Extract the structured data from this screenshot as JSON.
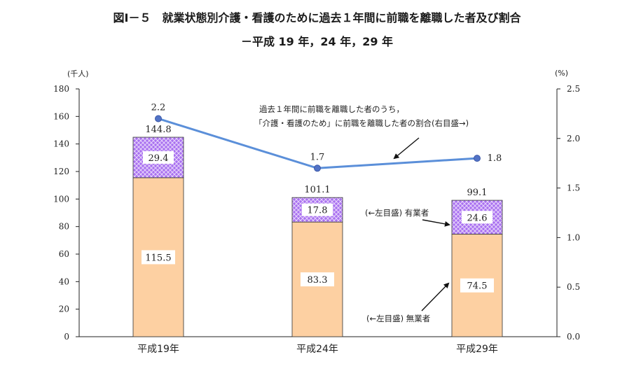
{
  "title": "図Ⅰ－５　就業状態別介護・看護のために過去１年間に前職を離職した者及び割合",
  "subtitle": "－平成 19 年，24 年，29 年",
  "chart_data": {
    "type": "bar",
    "stacked": true,
    "categories": [
      "平成19年",
      "平成24年",
      "平成29年"
    ],
    "series": [
      {
        "name": "(←左目盛) 無業者",
        "values": [
          115.5,
          83.3,
          74.5
        ],
        "value_labels": [
          "115.5",
          "83.3",
          "74.5"
        ],
        "color": "#fdd0a2"
      },
      {
        "name": "(←左目盛) 有業者",
        "values": [
          29.4,
          17.8,
          24.6
        ],
        "value_labels": [
          "29.4",
          "17.8",
          "24.6"
        ],
        "color": "#a970f0"
      }
    ],
    "totals": [
      144.8,
      101.1,
      99.1
    ],
    "total_labels": [
      "144.8",
      "101.1",
      "99.1"
    ],
    "line_series": {
      "name": "過去１年間に前職を離職した者のうち，「介護・看護のため」に前職を離職した者の割合(右目盛→)",
      "values": [
        2.2,
        1.7,
        1.8
      ],
      "value_labels": [
        "2.2",
        "1.7",
        "1.8"
      ],
      "color": "#5b8fd9"
    },
    "y_left": {
      "unit": "(千人)",
      "min": 0,
      "max": 180,
      "ticks": [
        0,
        20,
        40,
        60,
        80,
        100,
        120,
        140,
        160,
        180
      ]
    },
    "y_right": {
      "unit": "(%)",
      "min": 0,
      "max": 2.5,
      "ticks": [
        "0.0",
        "0.5",
        "1.0",
        "1.5",
        "2.0",
        "2.5"
      ]
    },
    "annotations": {
      "line_note_1": "過去１年間に前職を離職した者のうち，",
      "line_note_2": "「介護・看護のため」に前職を離職した者の割合(右目盛→)",
      "employed_note": "(←左目盛) 有業者",
      "unemployed_note": "(←左目盛) 無業者"
    }
  }
}
